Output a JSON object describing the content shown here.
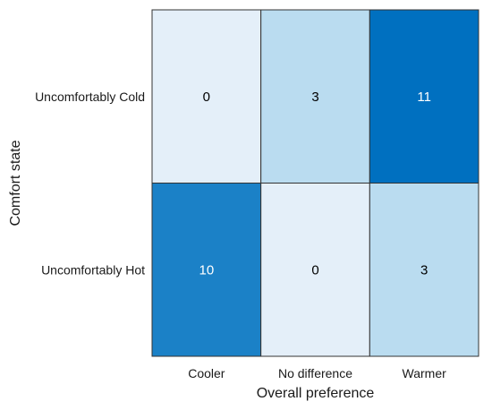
{
  "chart_data": {
    "type": "heatmap",
    "x_categories": [
      "Cooler",
      "No difference",
      "Warmer"
    ],
    "y_categories": [
      "Uncomfortably Cold",
      "Uncomfortably Hot"
    ],
    "values": [
      [
        0,
        3,
        11
      ],
      [
        10,
        0,
        3
      ]
    ],
    "xlabel": "Overall preference",
    "ylabel": "Comfort state",
    "color_scale": {
      "low": "#e4eff9",
      "mid": "#97cde9",
      "high": "#0070c0",
      "max_value": 11
    },
    "cell_text_colors": {
      "dark": "#000000",
      "light": "#ffffff"
    },
    "grid_color": "#333333"
  }
}
